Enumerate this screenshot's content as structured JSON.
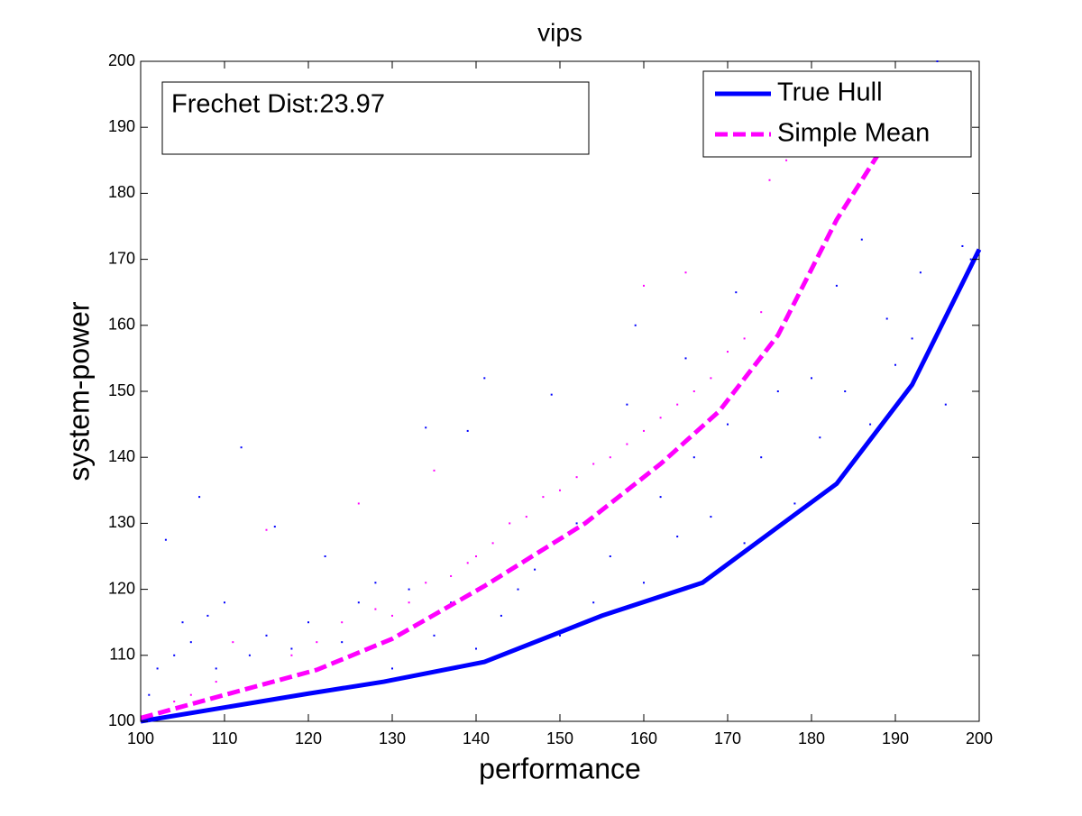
{
  "chart_data": {
    "type": "line",
    "title": "vips",
    "xlabel": "performance",
    "ylabel": "system-power",
    "annotation": "Frechet Dist:23.97",
    "xlim": [
      100,
      200
    ],
    "ylim": [
      100,
      200
    ],
    "xticks": [
      100,
      110,
      120,
      130,
      140,
      150,
      160,
      170,
      180,
      190,
      200
    ],
    "yticks": [
      100,
      110,
      120,
      130,
      140,
      150,
      160,
      170,
      180,
      190,
      200
    ],
    "legend": "upper right",
    "series": [
      {
        "mode": "scatter",
        "color": "#0000ff",
        "x": [
          101,
          102,
          103,
          104,
          105,
          106,
          107,
          108,
          109,
          110,
          112,
          113,
          115,
          116,
          118,
          120,
          122,
          124,
          126,
          128,
          130,
          132,
          134,
          135,
          137,
          139,
          140,
          141,
          143,
          145,
          147,
          149,
          150,
          152,
          154,
          156,
          158,
          159,
          160,
          162,
          164,
          165,
          166,
          168,
          170,
          171,
          172,
          174,
          176,
          178,
          180,
          181,
          183,
          184,
          186,
          187,
          189,
          190,
          192,
          193,
          195,
          196,
          198,
          199
        ],
        "values": [
          104,
          108,
          127.5,
          110,
          115,
          112,
          134,
          116,
          108,
          118,
          141.5,
          110,
          113,
          129.5,
          111,
          115,
          125,
          112,
          118,
          121,
          108,
          120,
          144.5,
          113,
          118,
          144,
          111,
          152,
          116,
          120,
          123,
          149.5,
          113,
          130,
          118,
          125,
          148,
          160,
          121,
          134,
          128,
          155,
          140,
          131,
          145,
          165,
          127,
          140,
          150,
          133,
          152,
          143,
          166,
          150,
          173,
          145,
          161,
          154,
          158,
          168,
          200,
          148,
          172,
          170
        ]
      },
      {
        "mode": "scatter",
        "color": "#ff00ff",
        "x": [
          104,
          106,
          109,
          111,
          115,
          118,
          121,
          124,
          126,
          128,
          130,
          132,
          134,
          135,
          137,
          139,
          140,
          142,
          144,
          146,
          148,
          150,
          152,
          154,
          156,
          158,
          160,
          160,
          162,
          164,
          165,
          166,
          168,
          170,
          172,
          174,
          175,
          177,
          179,
          181,
          184,
          187
        ],
        "values": [
          103,
          104,
          106,
          112,
          129,
          110,
          112,
          115,
          133,
          117,
          116,
          118,
          121,
          138,
          122,
          124,
          125,
          127,
          130,
          131,
          134,
          135,
          137,
          139,
          140,
          142,
          144,
          166,
          146,
          148,
          168,
          150,
          152,
          156,
          158,
          162,
          182,
          185,
          186,
          190,
          195,
          198
        ]
      },
      {
        "name": "True Hull",
        "mode": "line",
        "color": "#0000ff",
        "dash": false,
        "x": [
          100,
          120,
          129,
          141,
          155,
          167,
          183,
          192,
          200
        ],
        "values": [
          100,
          104.2,
          106,
          109,
          116,
          121,
          136,
          151,
          171.5
        ]
      },
      {
        "name": "Simple Mean",
        "mode": "line",
        "color": "#ff00ff",
        "dash": true,
        "x": [
          100,
          110,
          121,
          130,
          141,
          153,
          162,
          169,
          176,
          183,
          190
        ],
        "values": [
          100.5,
          104,
          107.8,
          112.5,
          120.5,
          130,
          139,
          147,
          158.5,
          176,
          190
        ]
      }
    ]
  }
}
